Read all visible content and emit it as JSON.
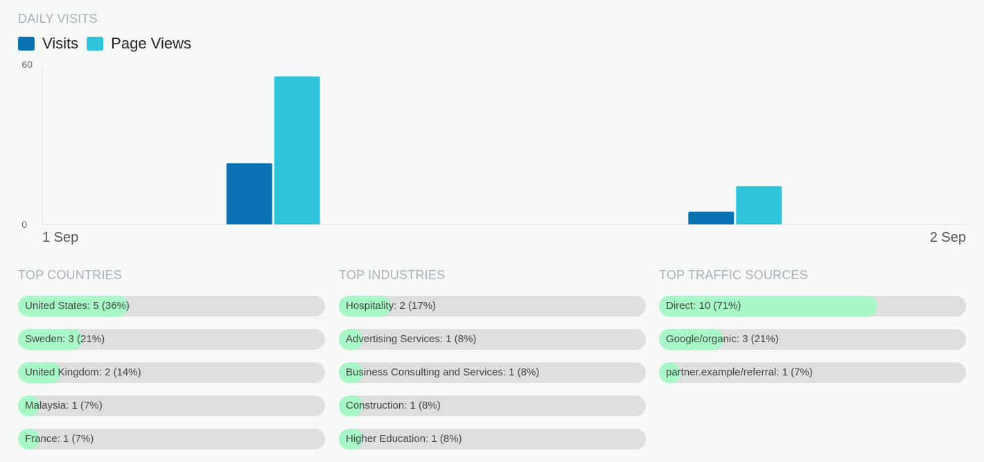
{
  "daily_visits": {
    "title": "DAILY VISITS",
    "legend": [
      {
        "label": "Visits",
        "color": "#0a74b2"
      },
      {
        "label": "Page Views",
        "color": "#2ec5dc"
      }
    ]
  },
  "chart_data": {
    "type": "bar",
    "categories": [
      "1 Sep",
      "2 Sep"
    ],
    "series": [
      {
        "name": "Visits",
        "values": [
          24,
          5
        ],
        "color": "#0a74b2"
      },
      {
        "name": "Page Views",
        "values": [
          58,
          15
        ],
        "color": "#2ec5dc"
      }
    ],
    "yticks": [
      "60",
      "0"
    ],
    "ylim": [
      0,
      60
    ],
    "xlabels": [
      "1 Sep",
      "2 Sep"
    ],
    "grid": false
  },
  "panels": {
    "countries": {
      "title": "TOP COUNTRIES",
      "items": [
        {
          "label": "United States: 5 (36%)",
          "fraction": 0.36
        },
        {
          "label": "Sweden: 3 (21%)",
          "fraction": 0.21
        },
        {
          "label": "United Kingdom: 2 (14%)",
          "fraction": 0.14
        },
        {
          "label": "Malaysia: 1 (7%)",
          "fraction": 0.07
        },
        {
          "label": "France: 1 (7%)",
          "fraction": 0.07
        }
      ]
    },
    "industries": {
      "title": "TOP INDUSTRIES",
      "items": [
        {
          "label": "Hospitality: 2 (17%)",
          "fraction": 0.17
        },
        {
          "label": "Advertising Services: 1 (8%)",
          "fraction": 0.08
        },
        {
          "label": "Business Consulting and Services: 1 (8%)",
          "fraction": 0.08
        },
        {
          "label": "Construction: 1 (8%)",
          "fraction": 0.08
        },
        {
          "label": "Higher Education: 1 (8%)",
          "fraction": 0.08
        }
      ]
    },
    "traffic": {
      "title": "TOP TRAFFIC SOURCES",
      "items": [
        {
          "label": "Direct: 10 (71%)",
          "fraction": 0.71
        },
        {
          "label": "Google/organic: 3 (21%)",
          "fraction": 0.21
        },
        {
          "label": "partner.example/referral: 1 (7%)",
          "fraction": 0.07
        }
      ]
    }
  },
  "colors": {
    "bar_track": "#dedede",
    "bar_fill": "#a8f7c6",
    "section_title": "#a7b1bb"
  }
}
